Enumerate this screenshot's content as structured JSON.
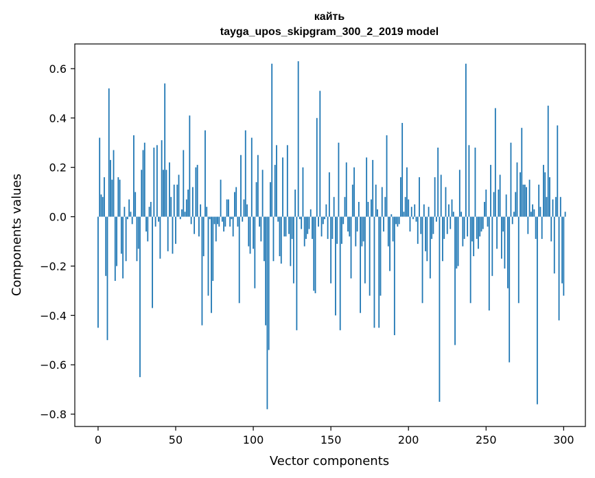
{
  "chart_data": {
    "type": "bar",
    "title": "кайть",
    "subtitle": "tayga_upos_skipgram_300_2_2019 model",
    "xlabel": "Vector components",
    "ylabel": "Components values",
    "xlim": [
      -15,
      314
    ],
    "ylim": [
      -0.85,
      0.7
    ],
    "xticks": [
      0,
      50,
      100,
      150,
      200,
      250,
      300
    ],
    "yticks": [
      -0.8,
      -0.6,
      -0.4,
      -0.2,
      0.0,
      0.2,
      0.4,
      0.6
    ],
    "xtick_labels": [
      "0",
      "50",
      "100",
      "150",
      "200",
      "250",
      "300"
    ],
    "ytick_labels": [
      "−0.8",
      "−0.6",
      "−0.4",
      "−0.2",
      "0.0",
      "0.2",
      "0.4",
      "0.6"
    ],
    "bar_color": "#1f77b4",
    "grid": false,
    "values": [
      -0.45,
      0.32,
      0.09,
      0.08,
      0.16,
      -0.24,
      -0.5,
      0.52,
      0.23,
      0.15,
      0.27,
      -0.26,
      -0.2,
      0.16,
      0.15,
      -0.15,
      -0.25,
      0.04,
      -0.18,
      -0.01,
      0.07,
      0.02,
      -0.03,
      0.33,
      0.1,
      -0.18,
      -0.13,
      -0.65,
      0.19,
      0.27,
      0.3,
      -0.06,
      -0.1,
      0.04,
      0.06,
      -0.37,
      0.28,
      -0.04,
      0.29,
      -0.02,
      -0.17,
      0.31,
      0.19,
      0.54,
      0.19,
      -0.14,
      0.22,
      0.08,
      -0.15,
      0.13,
      -0.11,
      0.13,
      0.17,
      -0.01,
      0.03,
      0.27,
      0.02,
      0.07,
      0.11,
      0.41,
      -0.03,
      0.12,
      -0.07,
      0.2,
      0.21,
      -0.08,
      0.05,
      -0.44,
      -0.16,
      0.35,
      0.04,
      -0.32,
      -0.01,
      -0.39,
      -0.26,
      -0.03,
      -0.1,
      -0.03,
      -0.04,
      0.15,
      -0.02,
      -0.06,
      -0.04,
      0.07,
      0.07,
      -0.04,
      -0.01,
      -0.08,
      0.1,
      0.12,
      -0.04,
      -0.35,
      0.25,
      -0.02,
      0.07,
      0.35,
      0.05,
      -0.12,
      -0.15,
      0.32,
      -0.13,
      -0.29,
      0.14,
      0.25,
      -0.04,
      -0.1,
      0.19,
      -0.18,
      -0.44,
      -0.78,
      -0.54,
      0.14,
      0.62,
      -0.18,
      0.21,
      0.29,
      -0.02,
      -0.16,
      -0.19,
      0.24,
      -0.08,
      -0.08,
      0.29,
      -0.07,
      -0.2,
      -0.09,
      -0.27,
      0.11,
      -0.46,
      0.63,
      -0.01,
      -0.05,
      0.2,
      -0.12,
      -0.09,
      -0.07,
      -0.05,
      0.03,
      -0.09,
      -0.3,
      -0.31,
      0.4,
      -0.04,
      0.51,
      -0.08,
      -0.03,
      -0.01,
      0.05,
      -0.09,
      0.18,
      -0.27,
      -0.09,
      0.08,
      -0.4,
      -0.11,
      0.3,
      -0.46,
      -0.11,
      -0.03,
      0.08,
      0.22,
      -0.06,
      -0.08,
      -0.25,
      0.13,
      0.2,
      -0.12,
      -0.06,
      0.06,
      -0.39,
      -0.12,
      -0.1,
      -0.27,
      0.24,
      0.06,
      -0.32,
      0.07,
      0.23,
      -0.45,
      0.13,
      0.03,
      -0.45,
      -0.32,
      0.12,
      -0.06,
      0.08,
      0.33,
      -0.12,
      -0.22,
      0.01,
      -0.1,
      -0.48,
      -0.03,
      -0.04,
      -0.03,
      0.16,
      0.38,
      0.02,
      0.08,
      0.2,
      0.07,
      -0.06,
      0.04,
      -0.01,
      0.05,
      -0.02,
      -0.11,
      0.16,
      -0.07,
      -0.35,
      0.05,
      -0.14,
      -0.18,
      0.04,
      -0.25,
      -0.09,
      -0.07,
      0.16,
      -0.02,
      0.28,
      -0.75,
      0.17,
      -0.18,
      -0.09,
      0.12,
      -0.07,
      0.05,
      -0.05,
      0.07,
      0.02,
      -0.52,
      -0.21,
      -0.2,
      0.19,
      0.02,
      -0.12,
      -0.09,
      0.62,
      -0.08,
      0.29,
      -0.35,
      -0.1,
      -0.16,
      0.28,
      -0.09,
      -0.13,
      -0.08,
      -0.06,
      -0.05,
      0.06,
      0.11,
      -0.04,
      -0.38,
      0.21,
      -0.24,
      0.1,
      0.44,
      -0.13,
      0.11,
      0.17,
      -0.17,
      -0.06,
      -0.21,
      0.09,
      -0.29,
      -0.59,
      0.3,
      -0.03,
      0.02,
      0.1,
      0.22,
      -0.35,
      0.18,
      0.36,
      0.13,
      0.13,
      0.12,
      -0.07,
      0.15,
      0.02,
      0.05,
      0.03,
      -0.09,
      -0.76,
      0.13,
      0.04,
      -0.09,
      0.21,
      0.18,
      0.08,
      0.45,
      0.16,
      -0.1,
      0.07,
      -0.23,
      0.08,
      0.37,
      -0.42,
      0.08,
      -0.27,
      -0.32,
      0.02
    ]
  }
}
